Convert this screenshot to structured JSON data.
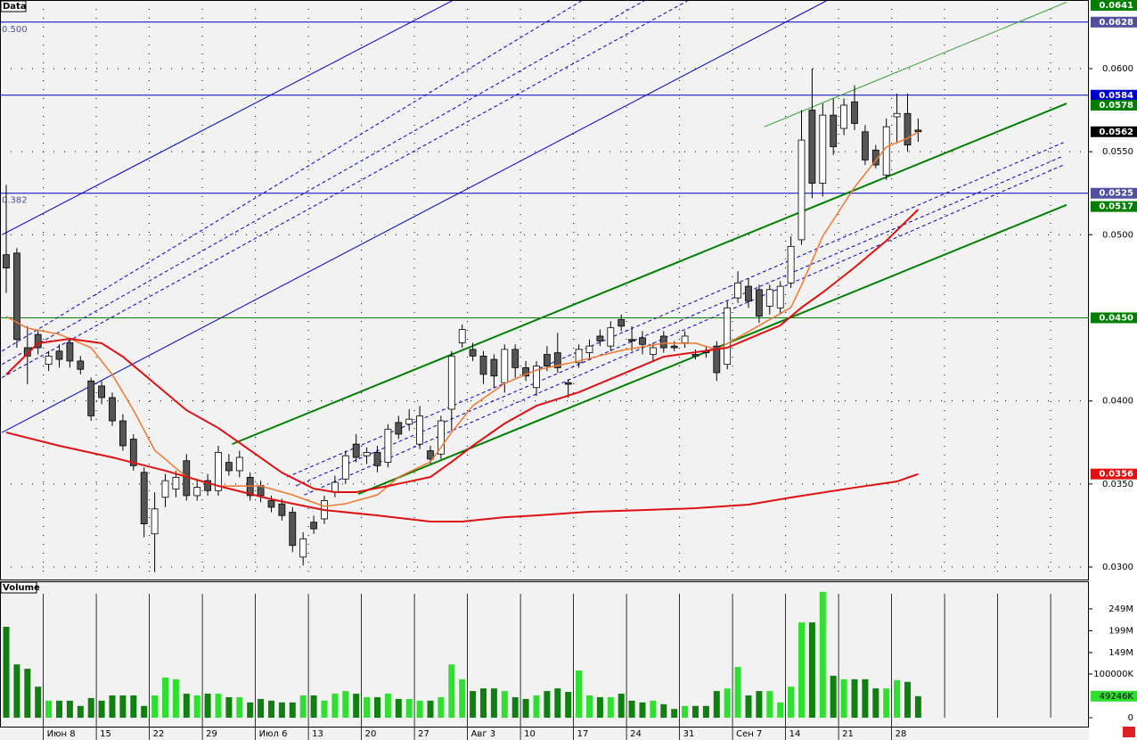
{
  "chart_data": [
    {
      "type": "candlestick",
      "panel_label": "Data",
      "categories": [
        null,
        null,
        null,
        null,
        "Июн 8",
        null,
        null,
        null,
        null,
        "15",
        null,
        null,
        null,
        null,
        "22",
        null,
        null,
        null,
        null,
        "29",
        null,
        null,
        null,
        null,
        "Июл 6",
        null,
        null,
        null,
        null,
        "13",
        null,
        null,
        null,
        null,
        "20",
        null,
        null,
        null,
        null,
        "27",
        null,
        null,
        null,
        null,
        "Авг 3",
        null,
        null,
        null,
        null,
        "10",
        null,
        null,
        null,
        null,
        "17",
        null,
        null,
        null,
        null,
        "24",
        null,
        null,
        null,
        null,
        "31",
        null,
        null,
        null,
        null,
        "Сен 7",
        null,
        null,
        null,
        null,
        "14",
        null,
        null,
        null,
        null,
        "21",
        null,
        null,
        null,
        null,
        "28",
        null,
        null
      ],
      "open": [
        0.0488,
        0.0489,
        0.0432,
        0.044,
        0.0422,
        0.043,
        0.0435,
        0.0424,
        0.0412,
        0.0409,
        0.0402,
        0.0388,
        0.0377,
        0.0357,
        0.032,
        0.0342,
        0.0347,
        0.0364,
        0.0343,
        0.0352,
        0.0346,
        0.0363,
        0.0358,
        0.0354,
        0.0349,
        0.034,
        0.0338,
        0.0333,
        0.0306,
        0.0327,
        0.0329,
        0.0345,
        0.0353,
        0.0374,
        0.0367,
        0.0369,
        0.0363,
        0.0387,
        0.0386,
        0.0374,
        0.037,
        0.0368,
        0.0395,
        0.0435,
        0.0431,
        0.0427,
        0.0425,
        0.0411,
        0.0431,
        0.042,
        0.0408,
        0.0428,
        0.0429,
        0.0411,
        0.0423,
        0.0429,
        0.0439,
        0.0433,
        0.0449,
        0.0437,
        0.0438,
        0.0428,
        0.0439,
        0.0433,
        0.0435,
        0.0428,
        0.043,
        0.0433,
        0.0422,
        0.0462,
        0.0469,
        0.0467,
        0.0457,
        0.0456,
        0.0471,
        0.0497,
        0.0575,
        0.0531,
        0.0572,
        0.0564,
        0.058,
        0.0562,
        0.0551,
        0.0536,
        0.0571,
        0.0573,
        0.0563
      ],
      "high": [
        0.053,
        0.0492,
        0.0445,
        0.0443,
        0.043,
        0.0434,
        0.0438,
        0.0427,
        0.0414,
        0.0412,
        0.0405,
        0.0392,
        0.038,
        0.036,
        0.0345,
        0.0356,
        0.0358,
        0.0368,
        0.0352,
        0.0356,
        0.0373,
        0.0368,
        0.037,
        0.0357,
        0.0352,
        0.0343,
        0.0341,
        0.0336,
        0.0321,
        0.0331,
        0.0343,
        0.0355,
        0.037,
        0.038,
        0.0372,
        0.0373,
        0.0386,
        0.0391,
        0.0395,
        0.0397,
        0.0373,
        0.0391,
        0.043,
        0.0446,
        0.0435,
        0.043,
        0.0428,
        0.0434,
        0.0434,
        0.0424,
        0.0424,
        0.0433,
        0.0441,
        0.0413,
        0.0434,
        0.0437,
        0.0443,
        0.0448,
        0.0452,
        0.0445,
        0.0442,
        0.0435,
        0.0442,
        0.0436,
        0.0442,
        0.0431,
        0.0433,
        0.0436,
        0.046,
        0.0478,
        0.0474,
        0.047,
        0.047,
        0.0472,
        0.0499,
        0.0575,
        0.06,
        0.0579,
        0.0582,
        0.0582,
        0.059,
        0.0566,
        0.0554,
        0.057,
        0.0585,
        0.0585,
        0.057
      ],
      "low": [
        0.0465,
        0.0432,
        0.041,
        0.0428,
        0.0418,
        0.042,
        0.042,
        0.0416,
        0.0388,
        0.0398,
        0.0385,
        0.037,
        0.0358,
        0.0318,
        0.0297,
        0.0336,
        0.0342,
        0.034,
        0.034,
        0.0343,
        0.0343,
        0.0355,
        0.0354,
        0.034,
        0.0339,
        0.0333,
        0.0328,
        0.0309,
        0.0301,
        0.032,
        0.0326,
        0.0342,
        0.035,
        0.0363,
        0.0362,
        0.0357,
        0.036,
        0.0377,
        0.0382,
        0.0371,
        0.0362,
        0.0365,
        0.0382,
        0.0432,
        0.0424,
        0.041,
        0.0408,
        0.0405,
        0.0414,
        0.0412,
        0.0403,
        0.0418,
        0.0417,
        0.0402,
        0.042,
        0.0425,
        0.0433,
        0.043,
        0.0442,
        0.043,
        0.0428,
        0.0424,
        0.0429,
        0.043,
        0.0432,
        0.0425,
        0.0426,
        0.0412,
        0.0419,
        0.0459,
        0.0456,
        0.0447,
        0.0452,
        0.0452,
        0.0468,
        0.0494,
        0.0522,
        0.0523,
        0.0548,
        0.056,
        0.0563,
        0.0542,
        0.054,
        0.0533,
        0.0555,
        0.055,
        0.0556
      ],
      "close": [
        0.048,
        0.0437,
        0.0427,
        0.0432,
        0.0427,
        0.0425,
        0.0424,
        0.0419,
        0.0391,
        0.0402,
        0.0388,
        0.0373,
        0.0361,
        0.0326,
        0.0335,
        0.0352,
        0.0354,
        0.0343,
        0.0348,
        0.0346,
        0.0369,
        0.0358,
        0.0366,
        0.0343,
        0.0343,
        0.0336,
        0.0331,
        0.0313,
        0.0317,
        0.0323,
        0.034,
        0.0351,
        0.0367,
        0.0366,
        0.0369,
        0.0361,
        0.0383,
        0.038,
        0.0389,
        0.0391,
        0.0365,
        0.0388,
        0.0427,
        0.0443,
        0.0427,
        0.0416,
        0.0415,
        0.0431,
        0.042,
        0.0415,
        0.0421,
        0.0421,
        0.042,
        0.041,
        0.0431,
        0.0433,
        0.0436,
        0.0444,
        0.0445,
        0.0436,
        0.0434,
        0.0432,
        0.0432,
        0.0432,
        0.0439,
        0.0427,
        0.0429,
        0.0417,
        0.0456,
        0.0471,
        0.046,
        0.0451,
        0.0467,
        0.0469,
        0.0493,
        0.0557,
        0.0531,
        0.0572,
        0.0553,
        0.0578,
        0.0567,
        0.0545,
        0.0542,
        0.0565,
        0.0573,
        0.0554,
        0.0562
      ],
      "up_color": "#ffffff",
      "down_color": "#555555",
      "ylim": [
        0.02925,
        0.06413
      ],
      "yticks": [
        {
          "value": 0.06,
          "label": "0.0600"
        },
        {
          "value": 0.055,
          "label": "0.0550"
        },
        {
          "value": 0.05,
          "label": "0.0500"
        },
        {
          "value": 0.04,
          "label": "0.0400"
        },
        {
          "value": 0.035,
          "label": "0.0350"
        },
        {
          "value": 0.03,
          "label": "0.0300"
        }
      ],
      "grid": true,
      "series": [
        {
          "color": "#f07830",
          "x": [
            0,
            2,
            5,
            8,
            10,
            12,
            14,
            17,
            20,
            24,
            27,
            30,
            32,
            35,
            37,
            40,
            42,
            44,
            47,
            50,
            54,
            58,
            62,
            65,
            67,
            70,
            74,
            75,
            77,
            80,
            83,
            85,
            86
          ],
          "values": [
            0.04508,
            0.04438,
            0.04401,
            0.0432,
            0.04159,
            0.03944,
            0.03703,
            0.03542,
            0.03488,
            0.03488,
            0.03434,
            0.03365,
            0.03381,
            0.03434,
            0.03542,
            0.03633,
            0.0381,
            0.03971,
            0.04105,
            0.04186,
            0.0424,
            0.04304,
            0.04347,
            0.04347,
            0.04309,
            0.04417,
            0.04562,
            0.04696,
            0.04991,
            0.05286,
            0.05528,
            0.05581,
            0.05619
          ]
        },
        {
          "color": "#e01010",
          "x": [
            0,
            3,
            6,
            9,
            11,
            14,
            17,
            20,
            23,
            26,
            29,
            31,
            33,
            36,
            38,
            40,
            42,
            44,
            47,
            50,
            54,
            58,
            62,
            65,
            68,
            71,
            73,
            75,
            77,
            80,
            83,
            86
          ],
          "values": [
            0.04159,
            0.04347,
            0.04374,
            0.04347,
            0.04266,
            0.04105,
            0.03944,
            0.03837,
            0.03703,
            0.03568,
            0.03472,
            0.03451,
            0.03451,
            0.03488,
            0.03515,
            0.03542,
            0.03633,
            0.0373,
            0.03864,
            0.03971,
            0.04052,
            0.04159,
            0.04266,
            0.04293,
            0.0432,
            0.04401,
            0.04454,
            0.04562,
            0.04653,
            0.04803,
            0.04964,
            0.05152
          ]
        },
        {
          "color": "#e01010",
          "x": [
            0,
            5,
            10,
            15,
            20,
            25,
            30,
            35,
            40,
            43,
            47,
            50,
            55,
            60,
            65,
            70,
            75,
            80,
            84,
            86
          ],
          "values": [
            0.0381,
            0.0373,
            0.0366,
            0.0358,
            0.03488,
            0.03408,
            0.03343,
            0.03311,
            0.03274,
            0.03274,
            0.033,
            0.03311,
            0.03333,
            0.03343,
            0.03354,
            0.03376,
            0.03429,
            0.03478,
            0.03515,
            0.0356
          ]
        }
      ],
      "trendlines": [
        {
          "color": "#0000c0",
          "dash": false,
          "x": [
            -0.4,
            42.1
          ],
          "values": [
            0.05,
            0.0641
          ]
        },
        {
          "color": "#0000c0",
          "dash": false,
          "x": [
            -0.4,
            77.4
          ],
          "values": [
            0.0381,
            0.0641
          ]
        },
        {
          "color": "#0000c0",
          "dash": true,
          "x": [
            -0.4,
            54.3
          ],
          "values": [
            0.043,
            0.0641
          ]
        },
        {
          "color": "#0000c0",
          "dash": true,
          "x": [
            -0.4,
            60.2
          ],
          "values": [
            0.0422,
            0.0641
          ]
        },
        {
          "color": "#0000c0",
          "dash": true,
          "x": [
            -0.4,
            64.3
          ],
          "values": [
            0.0414,
            0.0641
          ]
        },
        {
          "color": "#0000c0",
          "dash": true,
          "x": [
            26.5,
            99.7
          ],
          "values": [
            0.03542,
            0.05555
          ]
        },
        {
          "color": "#0000c0",
          "dash": true,
          "x": [
            27.3,
            99.7
          ],
          "values": [
            0.03488,
            0.05474
          ]
        },
        {
          "color": "#0000c0",
          "dash": true,
          "x": [
            28.1,
            99.7
          ],
          "values": [
            0.03434,
            0.0542
          ]
        },
        {
          "color": "#008000",
          "dash": false,
          "x": [
            21.3,
            100
          ],
          "values": [
            0.0374,
            0.0579
          ]
        },
        {
          "color": "#008000",
          "dash": false,
          "x": [
            33.2,
            100
          ],
          "values": [
            0.0344,
            0.0518
          ]
        },
        {
          "color": "#30a030",
          "dash": false,
          "x": [
            71.5,
            100
          ],
          "values": [
            0.0565,
            0.064
          ]
        }
      ],
      "levels": [
        {
          "value": 0.0628,
          "color": "#0000c0",
          "label": "0.500"
        },
        {
          "value": 0.0584,
          "color": "#0000c0"
        },
        {
          "value": 0.0525,
          "color": "#0000c0",
          "label": "0.382"
        },
        {
          "value": 0.045,
          "color": "#008000"
        }
      ],
      "price_markers": [
        {
          "value": 0.0641,
          "label": "0.0641",
          "color": "#008000"
        },
        {
          "value": 0.0628,
          "label": "0.0628",
          "color": "#5050a0"
        },
        {
          "value": 0.0584,
          "label": "0.0584",
          "color": "#0000d0"
        },
        {
          "value": 0.0578,
          "label": "0.0578",
          "color": "#008000"
        },
        {
          "value": 0.0562,
          "label": "0.0562",
          "color": "#000000"
        },
        {
          "value": 0.0525,
          "label": "0.0525",
          "color": "#5050a0"
        },
        {
          "value": 0.0517,
          "label": "0.0517",
          "color": "#008000"
        },
        {
          "value": 0.045,
          "label": "0.0450",
          "color": "#008000"
        },
        {
          "value": 0.0356,
          "label": "0.0356",
          "color": "#e01010"
        }
      ]
    },
    {
      "type": "bar",
      "panel_label": "Volume",
      "values": [
        208000000,
        122000000,
        112000000,
        71000000,
        39000000,
        39000000,
        39000000,
        27000000,
        45000000,
        39000000,
        51000000,
        51000000,
        51000000,
        27000000,
        51000000,
        92000000,
        88000000,
        55000000,
        51000000,
        55000000,
        55000000,
        47000000,
        47000000,
        35000000,
        43000000,
        39000000,
        35000000,
        35000000,
        51000000,
        51000000,
        39000000,
        55000000,
        61000000,
        55000000,
        47000000,
        47000000,
        55000000,
        43000000,
        43000000,
        39000000,
        39000000,
        47000000,
        122000000,
        88000000,
        61000000,
        67000000,
        67000000,
        61000000,
        47000000,
        43000000,
        51000000,
        61000000,
        67000000,
        59000000,
        108000000,
        51000000,
        47000000,
        47000000,
        55000000,
        39000000,
        35000000,
        39000000,
        31000000,
        20000000,
        27000000,
        27000000,
        27000000,
        61000000,
        67000000,
        116000000,
        51000000,
        61000000,
        61000000,
        35000000,
        71000000,
        218000000,
        218000000,
        288000000,
        96000000,
        88000000,
        88000000,
        88000000,
        67000000,
        67000000,
        86000000,
        82000000,
        49246000
      ],
      "up_color": "#30e030",
      "down_color": "#108010",
      "ylim": [
        0,
        312000000
      ],
      "yticks": [
        {
          "value": 249000000,
          "label": "249M"
        },
        {
          "value": 199000000,
          "label": "199M"
        },
        {
          "value": 149000000,
          "label": "149M"
        },
        {
          "value": 100000000,
          "label": "100000K"
        },
        0
      ],
      "last_marker": {
        "value": 49246000,
        "label": "49246K",
        "color": "#30e030"
      }
    }
  ]
}
